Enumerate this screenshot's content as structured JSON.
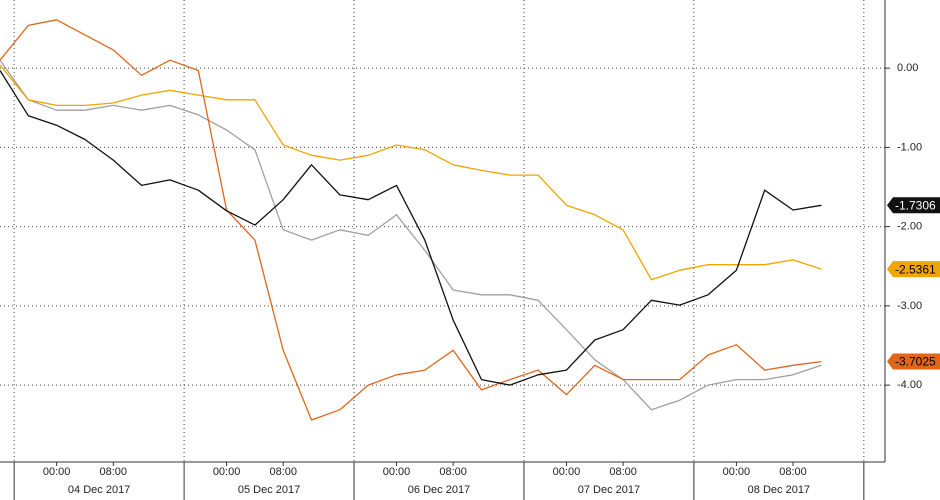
{
  "chart_data": {
    "type": "line",
    "x": [
      "2017-12-03T16:00",
      "2017-12-03T20:00",
      "2017-12-04T00:00",
      "2017-12-04T04:00",
      "2017-12-04T08:00",
      "2017-12-04T12:00",
      "2017-12-04T16:00",
      "2017-12-04T20:00",
      "2017-12-05T00:00",
      "2017-12-05T04:00",
      "2017-12-05T08:00",
      "2017-12-05T12:00",
      "2017-12-05T16:00",
      "2017-12-05T20:00",
      "2017-12-06T00:00",
      "2017-12-06T04:00",
      "2017-12-06T08:00",
      "2017-12-06T12:00",
      "2017-12-06T16:00",
      "2017-12-06T20:00",
      "2017-12-07T00:00",
      "2017-12-07T04:00",
      "2017-12-07T08:00",
      "2017-12-07T12:00",
      "2017-12-07T16:00",
      "2017-12-07T20:00",
      "2017-12-08T00:00",
      "2017-12-08T04:00",
      "2017-12-08T08:00",
      "2017-12-08T12:00"
    ],
    "xlim": [
      "2017-12-03T16:00",
      "2017-12-08T20:00"
    ],
    "xticks": [
      {
        "value": "2017-12-04T00:00",
        "label": "00:00"
      },
      {
        "value": "2017-12-04T08:00",
        "label": "08:00"
      },
      {
        "value": "2017-12-05T00:00",
        "label": "00:00"
      },
      {
        "value": "2017-12-05T08:00",
        "label": "08:00"
      },
      {
        "value": "2017-12-06T00:00",
        "label": "00:00"
      },
      {
        "value": "2017-12-06T08:00",
        "label": "08:00"
      },
      {
        "value": "2017-12-07T00:00",
        "label": "00:00"
      },
      {
        "value": "2017-12-07T08:00",
        "label": "08:00"
      },
      {
        "value": "2017-12-08T00:00",
        "label": "00:00"
      },
      {
        "value": "2017-12-08T08:00",
        "label": "08:00"
      }
    ],
    "xgroups": [
      {
        "value": "2017-12-04",
        "label": "04 Dec 2017"
      },
      {
        "value": "2017-12-05",
        "label": "05 Dec 2017"
      },
      {
        "value": "2017-12-06",
        "label": "06 Dec 2017"
      },
      {
        "value": "2017-12-07",
        "label": "07 Dec 2017"
      },
      {
        "value": "2017-12-08",
        "label": "08 Dec 2017"
      }
    ],
    "ylim": [
      -4.97,
      0.86
    ],
    "yticks": [
      {
        "value": 0,
        "label": "0.00"
      },
      {
        "value": -1,
        "label": "-1.00"
      },
      {
        "value": -2,
        "label": "-2.00"
      },
      {
        "value": -3,
        "label": "-3.00"
      },
      {
        "value": -4,
        "label": "-4.00"
      }
    ],
    "grid": true,
    "series": [
      {
        "color": "#a0a0a0",
        "values": [
          0.1,
          -0.4,
          -0.53,
          -0.53,
          -0.47,
          -0.53,
          -0.47,
          -0.59,
          -0.78,
          -1.03,
          -2.04,
          -2.17,
          -2.04,
          -2.11,
          -1.85,
          -2.3,
          -2.8,
          -2.86,
          -2.86,
          -2.93,
          -3.3,
          -3.68,
          -3.93,
          -4.31,
          -4.19,
          -4.0,
          -3.93,
          -3.93,
          -3.87,
          -3.75
        ]
      },
      {
        "color": "#f0a500",
        "values": [
          0.04,
          -0.4,
          -0.47,
          -0.47,
          -0.44,
          -0.34,
          -0.28,
          -0.34,
          -0.4,
          -0.4,
          -0.97,
          -1.1,
          -1.16,
          -1.1,
          -0.97,
          -1.03,
          -1.22,
          -1.29,
          -1.35,
          -1.35,
          -1.73,
          -1.85,
          -2.04,
          -2.67,
          -2.55,
          -2.48,
          -2.48,
          -2.48,
          -2.42,
          -2.5361
        ],
        "last_label": "-2.5361"
      },
      {
        "color": "#e0661a",
        "values": [
          0.1,
          0.54,
          0.61,
          0.42,
          0.23,
          -0.09,
          0.1,
          -0.03,
          -1.79,
          -2.17,
          -3.56,
          -4.44,
          -4.31,
          -4.0,
          -3.87,
          -3.81,
          -3.56,
          -4.06,
          -3.93,
          -3.81,
          -4.12,
          -3.75,
          -3.93,
          -3.93,
          -3.93,
          -3.62,
          -3.49,
          -3.81,
          -3.75,
          -3.7025
        ],
        "last_label": "-3.7025"
      },
      {
        "color": "#111111",
        "values": [
          -0.03,
          -0.6,
          -0.72,
          -0.9,
          -1.16,
          -1.48,
          -1.41,
          -1.54,
          -1.8,
          -1.98,
          -1.66,
          -1.22,
          -1.6,
          -1.66,
          -1.48,
          -2.17,
          -3.18,
          -3.93,
          -4.0,
          -3.87,
          -3.81,
          -3.43,
          -3.3,
          -2.93,
          -2.99,
          -2.86,
          -2.55,
          -1.54,
          -1.79,
          -1.7306
        ],
        "last_label": "-1.7306"
      }
    ]
  }
}
